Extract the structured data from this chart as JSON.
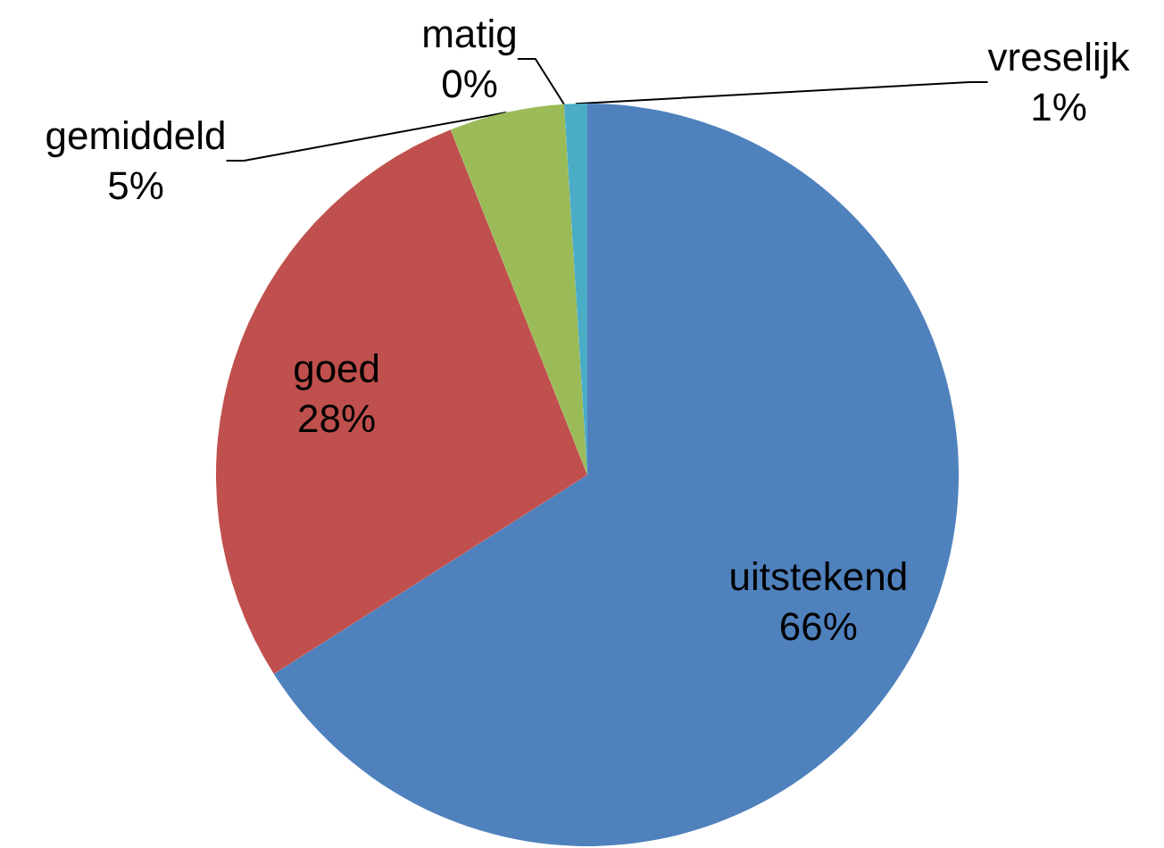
{
  "chart_data": {
    "type": "pie",
    "categories": [
      "uitstekend",
      "goed",
      "gemiddeld",
      "matig",
      "vreselijk"
    ],
    "values": [
      66,
      28,
      5,
      0,
      1
    ],
    "colors": [
      "#4f81bd",
      "#c0504d",
      "#9bbb59",
      "#8064a2",
      "#4bacc6"
    ],
    "value_labels": [
      "66%",
      "28%",
      "5%",
      "0%",
      "1%"
    ]
  }
}
